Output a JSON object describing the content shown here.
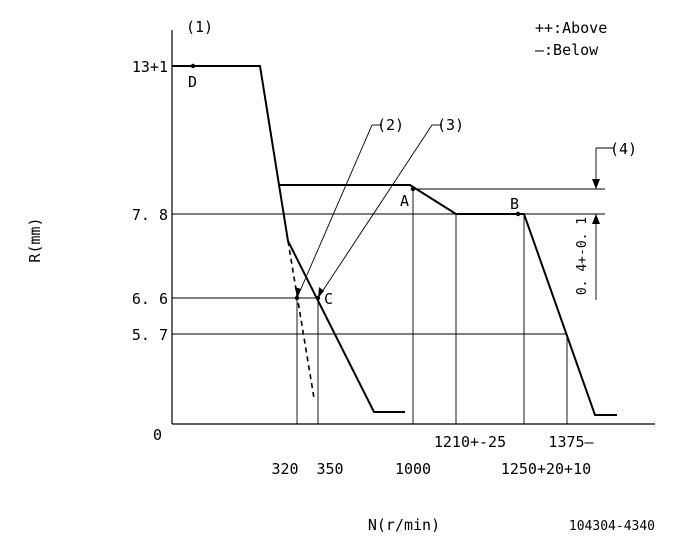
{
  "legend": {
    "above": "++:Above",
    "below": "—:Below"
  },
  "axes": {
    "y_label": "R(mm)",
    "x_label": "N(r/min)",
    "y_ticks": {
      "t13": "13+1",
      "t78": "7. 8",
      "t66": "6. 6",
      "t57": "5. 7",
      "t0": "0"
    },
    "x_ticks": {
      "t320": "320",
      "t350": "350",
      "t1000": "1000",
      "t1210": "1210+-25",
      "t1250": "1250+20+10",
      "t1375": "1375—"
    }
  },
  "callouts": {
    "c1": "(1)",
    "c2": "(2)",
    "c3": "(3)",
    "c4": "(4)"
  },
  "points": {
    "A": "A",
    "B": "B",
    "C": "C",
    "D": "D"
  },
  "dimension": "0. 4+-0. 1",
  "part_number": "104304-4340"
}
